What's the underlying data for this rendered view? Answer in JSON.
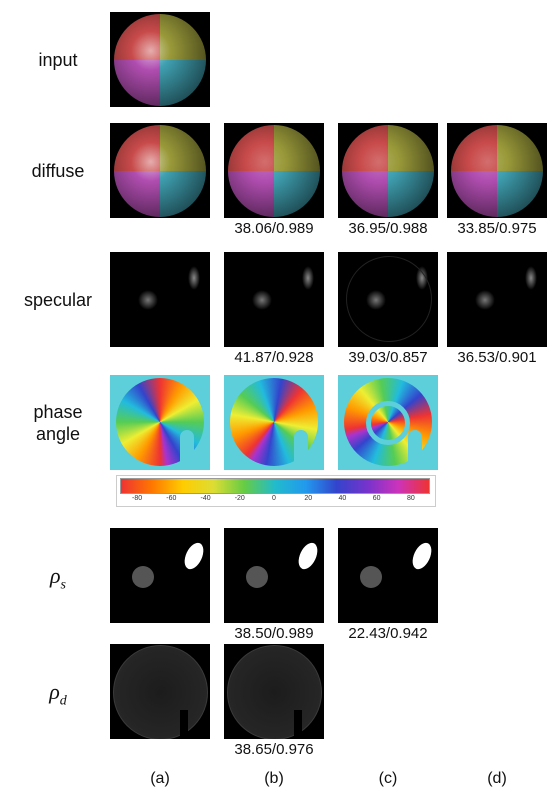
{
  "rows": [
    {
      "label": "input",
      "metrics": []
    },
    {
      "label": "diffuse",
      "metrics": [
        "38.06/0.989",
        "36.95/0.988",
        "33.85/0.975"
      ]
    },
    {
      "label": "specular",
      "metrics": [
        "41.87/0.928",
        "39.03/0.857",
        "36.53/0.901"
      ]
    },
    {
      "label": "phase angle",
      "metrics": [
        "",
        ""
      ]
    },
    {
      "symbol": "ρ",
      "subscript": "s",
      "metrics": [
        "38.50/0.989",
        "22.43/0.942"
      ]
    },
    {
      "symbol": "ρ",
      "subscript": "d",
      "metrics": [
        "38.65/0.976"
      ]
    }
  ],
  "colorbar": {
    "ticks": [
      -80,
      -60,
      -40,
      -20,
      0,
      20,
      40,
      60,
      80
    ]
  },
  "columns": [
    "(a)",
    "(b)",
    "(c)",
    "(d)"
  ]
}
